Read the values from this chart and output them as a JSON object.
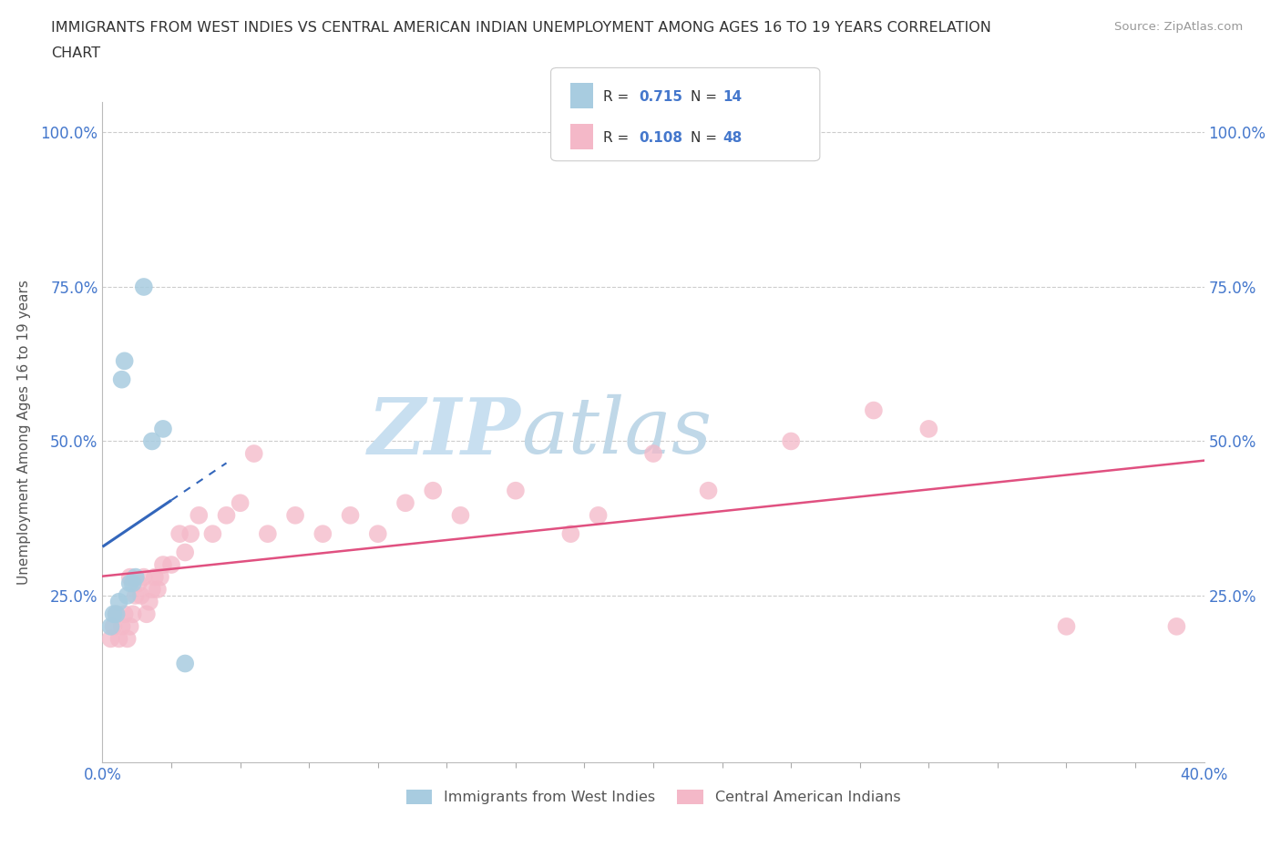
{
  "title_line1": "IMMIGRANTS FROM WEST INDIES VS CENTRAL AMERICAN INDIAN UNEMPLOYMENT AMONG AGES 16 TO 19 YEARS CORRELATION",
  "title_line2": "CHART",
  "source_text": "Source: ZipAtlas.com",
  "ylabel": "Unemployment Among Ages 16 to 19 years",
  "xlim": [
    0.0,
    0.4
  ],
  "ylim": [
    -0.02,
    1.05
  ],
  "r_blue": 0.715,
  "n_blue": 14,
  "r_pink": 0.108,
  "n_pink": 48,
  "legend_label_blue": "Immigrants from West Indies",
  "legend_label_pink": "Central American Indians",
  "blue_color": "#a8cce0",
  "pink_color": "#f4b8c8",
  "blue_line_color": "#3366bb",
  "pink_line_color": "#e05080",
  "background_color": "#ffffff",
  "watermark_zip": "ZIP",
  "watermark_atlas": "atlas",
  "title_color": "#333333",
  "axis_label_color": "#555555",
  "tick_color": "#4477cc",
  "grid_color": "#cccccc",
  "watermark_color_zip": "#c8dff0",
  "watermark_color_atlas": "#c0d8e8",
  "blue_scatter_x": [
    0.003,
    0.004,
    0.005,
    0.006,
    0.007,
    0.008,
    0.009,
    0.01,
    0.011,
    0.012,
    0.015,
    0.018,
    0.022,
    0.03
  ],
  "blue_scatter_y": [
    0.2,
    0.22,
    0.22,
    0.24,
    0.6,
    0.63,
    0.25,
    0.27,
    0.27,
    0.28,
    0.75,
    0.5,
    0.52,
    0.14
  ],
  "pink_scatter_x": [
    0.003,
    0.004,
    0.005,
    0.006,
    0.007,
    0.008,
    0.009,
    0.01,
    0.01,
    0.011,
    0.012,
    0.013,
    0.014,
    0.015,
    0.016,
    0.017,
    0.018,
    0.019,
    0.02,
    0.021,
    0.022,
    0.025,
    0.028,
    0.03,
    0.032,
    0.035,
    0.04,
    0.045,
    0.05,
    0.055,
    0.06,
    0.07,
    0.08,
    0.09,
    0.1,
    0.11,
    0.12,
    0.13,
    0.15,
    0.17,
    0.18,
    0.2,
    0.22,
    0.25,
    0.28,
    0.3,
    0.35,
    0.39
  ],
  "pink_scatter_y": [
    0.18,
    0.2,
    0.22,
    0.18,
    0.2,
    0.22,
    0.18,
    0.2,
    0.28,
    0.22,
    0.25,
    0.27,
    0.25,
    0.28,
    0.22,
    0.24,
    0.26,
    0.28,
    0.26,
    0.28,
    0.3,
    0.3,
    0.35,
    0.32,
    0.35,
    0.38,
    0.35,
    0.38,
    0.4,
    0.48,
    0.35,
    0.38,
    0.35,
    0.38,
    0.35,
    0.4,
    0.42,
    0.38,
    0.42,
    0.35,
    0.38,
    0.48,
    0.42,
    0.5,
    0.55,
    0.52,
    0.2,
    0.2
  ]
}
